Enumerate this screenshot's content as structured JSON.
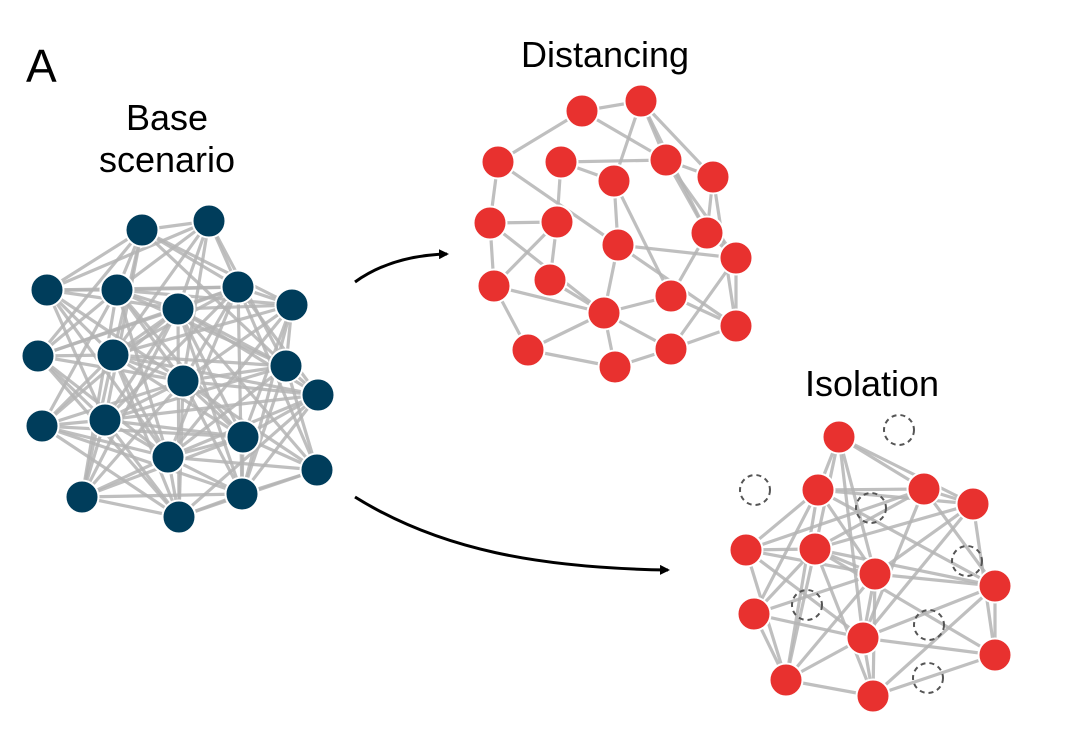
{
  "panel_label": "A",
  "base": {
    "title_line1": "Base",
    "title_line2": "scenario",
    "node_color": "#003d5b"
  },
  "distancing": {
    "title": "Distancing",
    "node_color": "#e8312f"
  },
  "isolation": {
    "title": "Isolation",
    "node_color": "#e8312f",
    "isolated_node_style": "dashed-outline"
  },
  "edge_color": "#b4b4b4",
  "arrow_color": "#000000"
}
